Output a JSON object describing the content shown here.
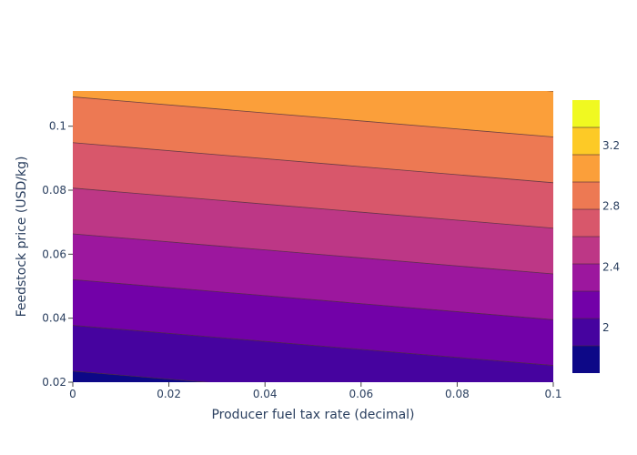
{
  "chart_data": {
    "type": "contour",
    "title": "",
    "xlabel": "Producer fuel tax rate (decimal)",
    "ylabel": "Feedstock price (USD/kg)",
    "xlim": [
      0,
      0.1
    ],
    "ylim": [
      0.02,
      0.111
    ],
    "x_ticks": [
      {
        "value": 0,
        "label": "0"
      },
      {
        "value": 0.02,
        "label": "0.02"
      },
      {
        "value": 0.04,
        "label": "0.04"
      },
      {
        "value": 0.06,
        "label": "0.06"
      },
      {
        "value": 0.08,
        "label": "0.08"
      },
      {
        "value": 0.1,
        "label": "0.1"
      }
    ],
    "y_ticks": [
      {
        "value": 0.02,
        "label": "0.02"
      },
      {
        "value": 0.04,
        "label": "0.04"
      },
      {
        "value": 0.06,
        "label": "0.06"
      },
      {
        "value": 0.08,
        "label": "0.08"
      },
      {
        "value": 0.1,
        "label": "0.1"
      }
    ],
    "contour_lines": [
      {
        "level": 1.8,
        "y_at_x0": 0.0237,
        "y_at_x01": 0.0107
      },
      {
        "level": 2.0,
        "y_at_x0": 0.038,
        "y_at_x01": 0.025
      },
      {
        "level": 2.2,
        "y_at_x0": 0.0523,
        "y_at_x01": 0.0393
      },
      {
        "level": 2.4,
        "y_at_x0": 0.0666,
        "y_at_x01": 0.0536
      },
      {
        "level": 2.6,
        "y_at_x0": 0.0809,
        "y_at_x01": 0.0679
      },
      {
        "level": 2.8,
        "y_at_x0": 0.0951,
        "y_at_x01": 0.0821
      },
      {
        "level": 3.0,
        "y_at_x0": 0.1094,
        "y_at_x01": 0.0964
      },
      {
        "level": 3.2,
        "y_at_x0": 0.1237,
        "y_at_x01": 0.1107
      }
    ],
    "colorscale": [
      "#0d0887",
      "#46039f",
      "#7201a8",
      "#9c179e",
      "#bd3786",
      "#d8576b",
      "#ed7953",
      "#fb9f3a",
      "#fdca26",
      "#f0f921"
    ],
    "colorbar": {
      "range": [
        1.7,
        3.5
      ],
      "tick_values": [
        {
          "value": 2,
          "label": "2"
        },
        {
          "value": 2.4,
          "label": "2.4"
        },
        {
          "value": 2.8,
          "label": "2.8"
        },
        {
          "value": 3.2,
          "label": "3.2"
        }
      ]
    }
  }
}
